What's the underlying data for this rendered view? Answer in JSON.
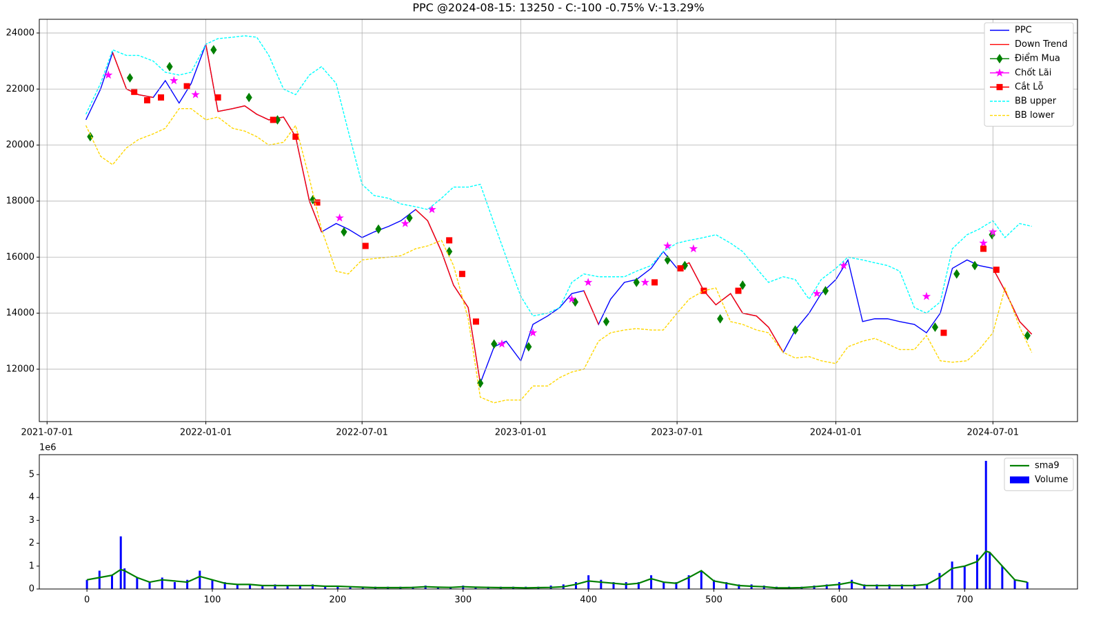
{
  "chart_data": [
    {
      "type": "line",
      "title": "PPC @2024-08-15: 13250 - C:-100 -0.75% V:-13.29%",
      "x": [
        "2021-08-15",
        "2021-09-01",
        "2021-09-15",
        "2021-10-01",
        "2021-10-15",
        "2021-11-01",
        "2021-11-15",
        "2021-12-01",
        "2021-12-15",
        "2022-01-01",
        "2022-01-15",
        "2022-02-01",
        "2022-02-15",
        "2022-03-01",
        "2022-03-15",
        "2022-04-01",
        "2022-04-15",
        "2022-05-01",
        "2022-05-15",
        "2022-06-01",
        "2022-06-15",
        "2022-07-01",
        "2022-07-15",
        "2022-08-01",
        "2022-08-15",
        "2022-09-01",
        "2022-09-15",
        "2022-10-01",
        "2022-10-15",
        "2022-11-01",
        "2022-11-15",
        "2022-12-01",
        "2022-12-15",
        "2023-01-01",
        "2023-01-15",
        "2023-02-01",
        "2023-02-15",
        "2023-03-01",
        "2023-03-15",
        "2023-04-01",
        "2023-04-15",
        "2023-05-01",
        "2023-05-15",
        "2023-06-01",
        "2023-06-15",
        "2023-07-01",
        "2023-07-15",
        "2023-08-01",
        "2023-08-15",
        "2023-09-01",
        "2023-09-15",
        "2023-10-01",
        "2023-10-15",
        "2023-11-01",
        "2023-11-15",
        "2023-12-01",
        "2023-12-15",
        "2024-01-01",
        "2024-01-15",
        "2024-02-01",
        "2024-02-15",
        "2024-03-01",
        "2024-03-15",
        "2024-04-01",
        "2024-04-15",
        "2024-05-01",
        "2024-05-15",
        "2024-06-01",
        "2024-06-15",
        "2024-07-01",
        "2024-07-15",
        "2024-08-01",
        "2024-08-15"
      ],
      "series": [
        {
          "name": "PPC",
          "color": "#0000ff",
          "style": "line",
          "values": [
            20900,
            22000,
            23300,
            22000,
            21800,
            21700,
            22300,
            21500,
            22200,
            23600,
            21200,
            21300,
            21400,
            21100,
            20900,
            21000,
            20300,
            18000,
            16900,
            17200,
            17000,
            16700,
            16900,
            17100,
            17300,
            17700,
            17300,
            16200,
            15000,
            14200,
            11500,
            12800,
            13000,
            12300,
            13600,
            13900,
            14200,
            14700,
            14800,
            13600,
            14500,
            15100,
            15200,
            15600,
            16200,
            15600,
            15800,
            14800,
            14300,
            14700,
            14000,
            13900,
            13500,
            12600,
            13400,
            14000,
            14700,
            15200,
            15900,
            13700,
            13800,
            13800,
            13700,
            13600,
            13300,
            14000,
            15600,
            15900,
            15700,
            15600,
            14800,
            13700,
            13250
          ]
        },
        {
          "name": "Down Trend",
          "color": "#ff0000",
          "style": "line",
          "values": [
            null,
            null,
            23300,
            22000,
            21800,
            21700,
            null,
            null,
            null,
            23600,
            21200,
            21300,
            21400,
            21100,
            20900,
            21000,
            20300,
            18000,
            16900,
            null,
            null,
            null,
            null,
            null,
            null,
            17700,
            17300,
            16200,
            15000,
            14200,
            11500,
            null,
            null,
            null,
            null,
            null,
            null,
            null,
            14800,
            13600,
            null,
            null,
            null,
            null,
            null,
            15600,
            15800,
            14800,
            14300,
            14700,
            14000,
            13900,
            13500,
            12600,
            null,
            null,
            null,
            null,
            null,
            null,
            null,
            null,
            null,
            null,
            null,
            null,
            null,
            null,
            null,
            15600,
            14800,
            13700,
            13250
          ]
        },
        {
          "name": "Điểm Mua",
          "color": "#008000",
          "style": "diamond",
          "x": [
            "2021-08-20",
            "2021-10-05",
            "2021-11-20",
            "2022-01-10",
            "2022-02-20",
            "2022-03-25",
            "2022-05-05",
            "2022-06-10",
            "2022-07-20",
            "2022-08-25",
            "2022-10-10",
            "2022-11-15",
            "2022-12-01",
            "2023-01-10",
            "2023-03-05",
            "2023-04-10",
            "2023-05-15",
            "2023-06-20",
            "2023-07-10",
            "2023-08-20",
            "2023-09-15",
            "2023-11-15",
            "2023-12-20",
            "2024-04-25",
            "2024-05-20",
            "2024-06-10",
            "2024-06-30",
            "2024-08-10"
          ],
          "values": [
            20300,
            22400,
            22800,
            23400,
            21700,
            20900,
            18050,
            16900,
            17000,
            17400,
            16200,
            11500,
            12900,
            12800,
            14400,
            13700,
            15100,
            15900,
            15700,
            13800,
            15000,
            13400,
            14800,
            13500,
            15400,
            15700,
            16800,
            13200
          ]
        },
        {
          "name": "Chốt Lãi",
          "color": "#ff00ff",
          "style": "star",
          "x": [
            "2021-09-10",
            "2021-11-25",
            "2021-12-20",
            "2022-06-05",
            "2022-08-20",
            "2022-09-20",
            "2022-12-10",
            "2023-01-15",
            "2023-03-01",
            "2023-03-20",
            "2023-05-25",
            "2023-06-20",
            "2023-07-20",
            "2023-12-10",
            "2024-01-10",
            "2024-04-15",
            "2024-06-20",
            "2024-07-01"
          ],
          "values": [
            22500,
            22300,
            21800,
            17400,
            17200,
            17700,
            12900,
            13300,
            14500,
            15100,
            15100,
            16400,
            16300,
            14700,
            15700,
            14600,
            16500,
            16900
          ]
        },
        {
          "name": "Cắt Lỗ",
          "color": "#ff0000",
          "style": "square",
          "x": [
            "2021-10-10",
            "2021-10-25",
            "2021-11-10",
            "2021-12-10",
            "2022-01-15",
            "2022-03-20",
            "2022-04-15",
            "2022-05-10",
            "2022-07-05",
            "2022-10-10",
            "2022-10-25",
            "2022-11-10",
            "2023-06-05",
            "2023-07-05",
            "2023-08-01",
            "2023-09-10",
            "2024-05-05",
            "2024-06-20",
            "2024-07-05"
          ],
          "values": [
            21900,
            21600,
            21700,
            22100,
            21700,
            20900,
            20300,
            17950,
            16400,
            16600,
            15400,
            13700,
            15100,
            15600,
            14800,
            14800,
            13300,
            16300,
            15550
          ]
        },
        {
          "name": "BB upper",
          "color": "#00ffff",
          "style": "dash",
          "values": [
            21100,
            22200,
            23400,
            23200,
            23200,
            23000,
            22600,
            22500,
            22600,
            23600,
            23800,
            23850,
            23900,
            23850,
            23200,
            22000,
            21800,
            22500,
            22800,
            22200,
            20500,
            18600,
            18200,
            18100,
            17900,
            17800,
            17700,
            18100,
            18500,
            18500,
            18600,
            17200,
            16000,
            14600,
            13900,
            14000,
            14200,
            15100,
            15400,
            15300,
            15300,
            15300,
            15500,
            15700,
            16200,
            16500,
            16600,
            16700,
            16800,
            16500,
            16200,
            15600,
            15100,
            15300,
            15200,
            14500,
            15200,
            15600,
            16000,
            15900,
            15800,
            15700,
            15500,
            14200,
            14000,
            14400,
            16300,
            16800,
            17000,
            17300,
            16700,
            17200,
            17100
          ]
        },
        {
          "name": "BB lower",
          "color": "#ffd700",
          "style": "dash",
          "values": [
            20700,
            19600,
            19300,
            19900,
            20200,
            20400,
            20600,
            21300,
            21300,
            20900,
            21000,
            20600,
            20500,
            20300,
            20000,
            20100,
            20700,
            18800,
            17000,
            15500,
            15400,
            15900,
            15950,
            16000,
            16050,
            16300,
            16400,
            16600,
            15700,
            13800,
            11000,
            10800,
            10900,
            10900,
            11400,
            11400,
            11700,
            11900,
            12000,
            13000,
            13300,
            13400,
            13450,
            13400,
            13400,
            14000,
            14500,
            14800,
            14900,
            13700,
            13600,
            13400,
            13300,
            12600,
            12400,
            12450,
            12300,
            12200,
            12800,
            13000,
            13100,
            12900,
            12700,
            12700,
            13200,
            12300,
            12250,
            12300,
            12700,
            13300,
            14900,
            13500,
            12600
          ]
        }
      ],
      "xlim": [
        "2021-06-22",
        "2024-10-07"
      ],
      "xticks": [
        "2021-07-01",
        "2022-01-01",
        "2022-07-01",
        "2023-01-01",
        "2023-07-01",
        "2024-01-01",
        "2024-07-01"
      ],
      "ylim": [
        10130,
        24490
      ],
      "yticks": [
        12000,
        14000,
        16000,
        18000,
        20000,
        22000,
        24000
      ],
      "grid": true,
      "legend": "upper right"
    },
    {
      "type": "bar",
      "offset_label": "1e6",
      "x": [
        0,
        10,
        20,
        27,
        30,
        40,
        50,
        60,
        70,
        80,
        90,
        100,
        110,
        120,
        130,
        140,
        150,
        160,
        170,
        180,
        190,
        200,
        210,
        220,
        230,
        240,
        250,
        260,
        270,
        280,
        290,
        300,
        310,
        320,
        330,
        340,
        350,
        360,
        370,
        380,
        390,
        400,
        410,
        420,
        430,
        440,
        450,
        460,
        470,
        480,
        490,
        500,
        510,
        520,
        530,
        540,
        550,
        560,
        570,
        580,
        590,
        600,
        610,
        620,
        630,
        640,
        650,
        660,
        670,
        680,
        690,
        700,
        710,
        717,
        720,
        730,
        740,
        750
      ],
      "series": [
        {
          "name": "sma9",
          "color": "#008000",
          "style": "line",
          "values": [
            0.4,
            0.5,
            0.6,
            0.85,
            0.8,
            0.5,
            0.3,
            0.4,
            0.35,
            0.3,
            0.55,
            0.4,
            0.25,
            0.2,
            0.2,
            0.15,
            0.15,
            0.15,
            0.15,
            0.15,
            0.12,
            0.12,
            0.1,
            0.08,
            0.06,
            0.06,
            0.06,
            0.07,
            0.1,
            0.08,
            0.07,
            0.1,
            0.08,
            0.07,
            0.06,
            0.06,
            0.05,
            0.06,
            0.07,
            0.1,
            0.2,
            0.35,
            0.3,
            0.25,
            0.2,
            0.25,
            0.45,
            0.3,
            0.25,
            0.5,
            0.8,
            0.35,
            0.25,
            0.15,
            0.12,
            0.1,
            0.05,
            0.05,
            0.06,
            0.1,
            0.15,
            0.2,
            0.3,
            0.15,
            0.15,
            0.15,
            0.15,
            0.15,
            0.2,
            0.5,
            0.9,
            1.0,
            1.2,
            1.65,
            1.6,
            1.0,
            0.4,
            0.3
          ]
        },
        {
          "name": "Volume",
          "color": "#0000ff",
          "style": "bar",
          "values": [
            0.4,
            0.8,
            0.6,
            2.3,
            0.9,
            0.5,
            0.3,
            0.5,
            0.3,
            0.4,
            0.8,
            0.4,
            0.3,
            0.2,
            0.2,
            0.15,
            0.2,
            0.15,
            0.15,
            0.2,
            0.1,
            0.15,
            0.1,
            0.1,
            0.1,
            0.1,
            0.1,
            0.1,
            0.15,
            0.1,
            0.1,
            0.15,
            0.1,
            0.1,
            0.1,
            0.1,
            0.1,
            0.1,
            0.15,
            0.2,
            0.3,
            0.6,
            0.4,
            0.3,
            0.3,
            0.3,
            0.6,
            0.3,
            0.3,
            0.6,
            0.8,
            0.4,
            0.3,
            0.2,
            0.2,
            0.15,
            0.1,
            0.1,
            0.1,
            0.15,
            0.2,
            0.3,
            0.4,
            0.2,
            0.2,
            0.2,
            0.2,
            0.2,
            0.2,
            0.7,
            1.2,
            1.0,
            1.5,
            5.6,
            1.6,
            1.0,
            0.4,
            0.3
          ]
        }
      ],
      "xlim": [
        -38,
        790
      ],
      "xticks": [
        0,
        100,
        200,
        300,
        400,
        500,
        600,
        700
      ],
      "ylim": [
        0,
        5.87
      ],
      "yticks": [
        0,
        1,
        2,
        3,
        4,
        5
      ],
      "grid": false,
      "legend": "upper right"
    }
  ]
}
